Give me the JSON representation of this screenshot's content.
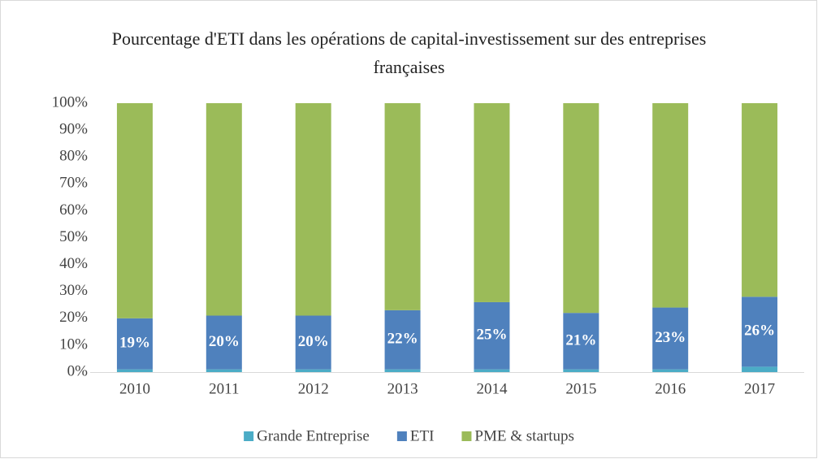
{
  "chart_data": {
    "type": "stacked_bar",
    "title": "Pourcentage d'ETI dans les opérations de capital-investissement sur des entreprises françaises",
    "categories": [
      "2010",
      "2011",
      "2012",
      "2013",
      "2014",
      "2015",
      "2016",
      "2017"
    ],
    "series": [
      {
        "name": "Grande Entreprise",
        "color": "#4bacc6",
        "values": [
          1,
          1,
          1,
          1,
          1,
          1,
          1,
          2
        ]
      },
      {
        "name": "ETI",
        "color": "#4f81bd",
        "values": [
          19,
          20,
          20,
          22,
          25,
          21,
          23,
          26
        ],
        "value_labels": [
          "19%",
          "20%",
          "20%",
          "22%",
          "25%",
          "21%",
          "23%",
          "26%"
        ]
      },
      {
        "name": "PME & startups",
        "color": "#9bbb59",
        "values": [
          80,
          79,
          79,
          77,
          74,
          78,
          76,
          72
        ]
      }
    ],
    "ylim": [
      0,
      100
    ],
    "yticks": [
      {
        "value": 0,
        "label": "0%"
      },
      {
        "value": 10,
        "label": "10%"
      },
      {
        "value": 20,
        "label": "20%"
      },
      {
        "value": 30,
        "label": "30%"
      },
      {
        "value": 40,
        "label": "40%"
      },
      {
        "value": 50,
        "label": "50%"
      },
      {
        "value": 60,
        "label": "60%"
      },
      {
        "value": 70,
        "label": "70%"
      },
      {
        "value": 80,
        "label": "80%"
      },
      {
        "value": 90,
        "label": "90%"
      },
      {
        "value": 100,
        "label": "100%"
      }
    ],
    "grid": false,
    "legend": "bottom"
  }
}
